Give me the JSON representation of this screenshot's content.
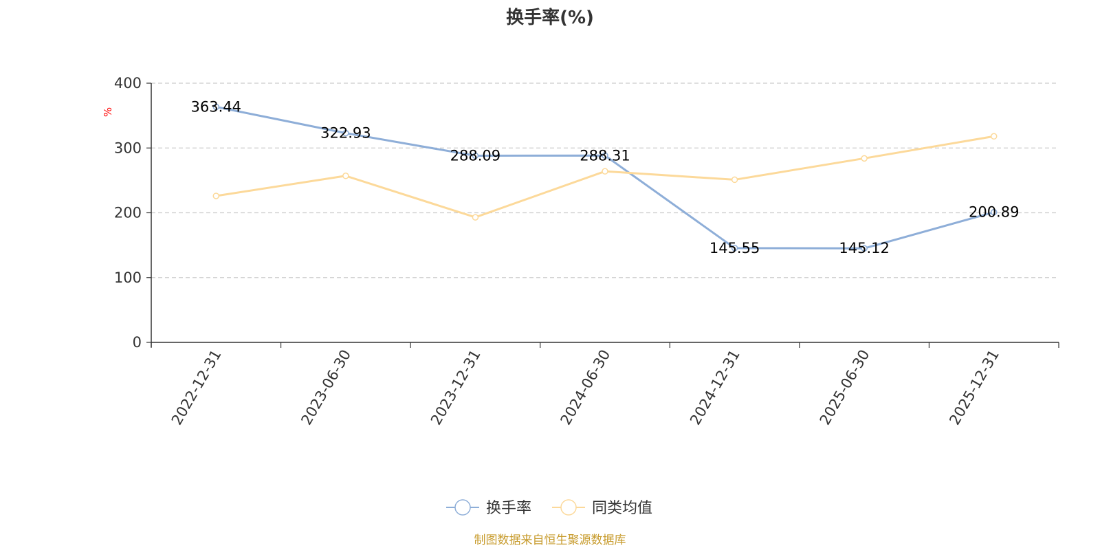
{
  "chart_data": {
    "type": "line",
    "title": "换手率(%)",
    "ylabel": "%",
    "xlabel": "",
    "categories": [
      "2022-12-31",
      "2023-06-30",
      "2023-12-31",
      "2024-06-30",
      "2024-12-31",
      "2025-06-30",
      "2025-12-31"
    ],
    "ylim": [
      0,
      400
    ],
    "yticks": [
      "0",
      "100",
      "200",
      "300",
      "400"
    ],
    "grid": true,
    "legend_position": "bottom-center",
    "series": [
      {
        "name": "换手率",
        "color": "#8eaed8",
        "values": [
          363.44,
          322.93,
          288.09,
          288.31,
          145.55,
          145.12,
          200.89
        ],
        "labels": [
          "363.44",
          "322.93",
          "288.09",
          "288.31",
          "145.55",
          "145.12",
          "200.89"
        ]
      },
      {
        "name": "同类均值",
        "color": "#fcd99a",
        "values": [
          226,
          257,
          193,
          264,
          251,
          284,
          318
        ]
      }
    ]
  },
  "footer": {
    "source": "制图数据来自恒生聚源数据库"
  }
}
